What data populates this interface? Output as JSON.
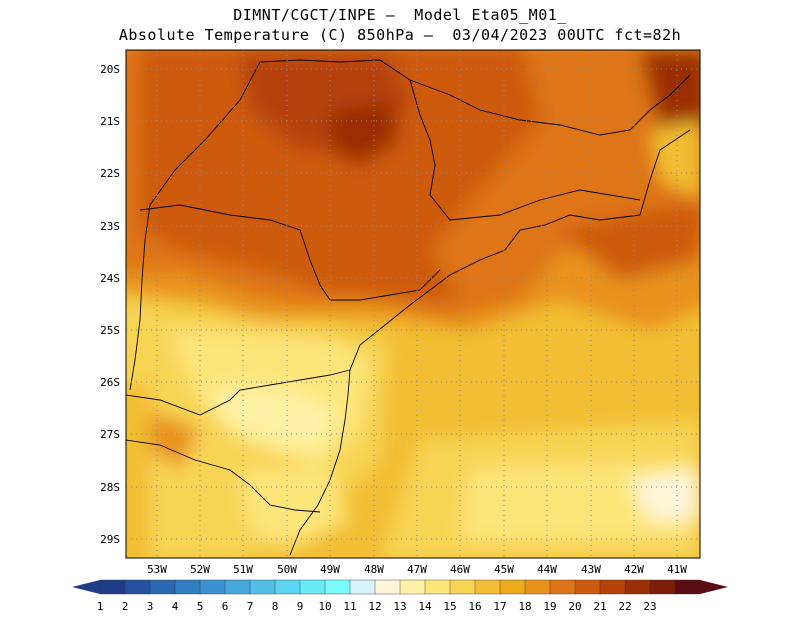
{
  "title": {
    "line1": "DIMNT/CGCT/INPE –  Model Eta05_M01_",
    "line2": "Absolute Temperature (C) 850hPa –  03/04/2023 00UTC fct=82h"
  },
  "map": {
    "lat_labels": [
      "20S",
      "21S",
      "22S",
      "23S",
      "24S",
      "25S",
      "26S",
      "27S",
      "28S",
      "29S"
    ],
    "lon_labels": [
      "53W",
      "52W",
      "51W",
      "50W",
      "49W",
      "48W",
      "47W",
      "46W",
      "45W",
      "44W",
      "43W",
      "42W",
      "41W"
    ]
  },
  "colorbar": {
    "labels": [
      "1",
      "2",
      "3",
      "4",
      "5",
      "6",
      "7",
      "8",
      "9",
      "10",
      "11",
      "12",
      "13",
      "14",
      "15",
      "16",
      "17",
      "18",
      "19",
      "20",
      "21",
      "22",
      "23"
    ],
    "colors": [
      "#1f3c88",
      "#24529e",
      "#2a67b0",
      "#327cc0",
      "#3b92cf",
      "#46a8dd",
      "#51bfe8",
      "#5cd5f0",
      "#66ebf7",
      "#7afcfc",
      "#d6f4fa",
      "#fff6dc",
      "#fff2a6",
      "#fde57a",
      "#f8d454",
      "#f2be33",
      "#ecaa1c",
      "#e8921b",
      "#de7415",
      "#cd5a0f",
      "#b54208",
      "#9a2e05",
      "#7e1d08",
      "#5a0e14"
    ],
    "under_color": "#1f3c88",
    "over_color": "#5a0e14"
  }
}
